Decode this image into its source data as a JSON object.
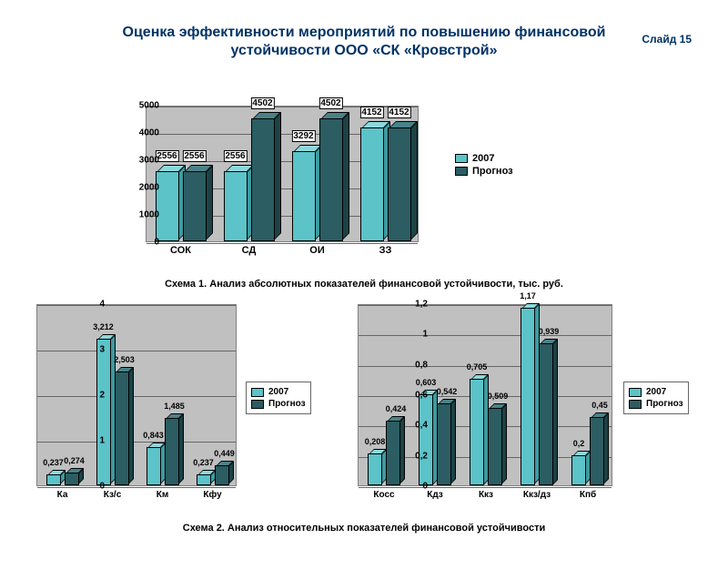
{
  "slide_number": "Слайд 15",
  "title_line1": "Оценка эффективности мероприятий по повышению финансовой",
  "title_line2": "устойчивости ООО «СК «Кровстрой»",
  "caption1": "Схема 1. Анализ абсолютных показателей финансовой устойчивости, тыс. руб.",
  "caption2": "Схема 2. Анализ относительных показателей финансовой устойчивости",
  "legend_2007": "2007",
  "legend_prognoz": "Прогноз",
  "colors": {
    "series_2007": "#5cc3c9",
    "series_prognoz": "#2b5d62",
    "plot_bg": "#c0c0c0",
    "grid": "#666666",
    "title_color": "#003366"
  },
  "chart1": {
    "type": "bar-3d",
    "ymax": 5000,
    "ytick_step": 1000,
    "yticks": [
      "0",
      "1000",
      "2000",
      "3000",
      "4000",
      "5000"
    ],
    "categories": [
      "СОК",
      "СД",
      "ОИ",
      "ЗЗ"
    ],
    "series_2007": [
      2556,
      2556,
      3292,
      4152
    ],
    "series_prognoz": [
      2556,
      4502,
      4502,
      4152
    ],
    "labels_2007": [
      "2556",
      "2556",
      "3292",
      "4152"
    ],
    "labels_prognoz": [
      "2556",
      "4502",
      "4502",
      "4152"
    ]
  },
  "chart2": {
    "type": "bar-3d",
    "ymax": 4,
    "ytick_step": 1,
    "yticks": [
      "0",
      "1",
      "2",
      "3",
      "4"
    ],
    "categories": [
      "Ка",
      "Кз/с",
      "Км",
      "Кфу"
    ],
    "series_2007": [
      0.237,
      3.212,
      0.843,
      0.237
    ],
    "series_prognoz": [
      0.274,
      2.503,
      1.485,
      0.449
    ],
    "labels_2007": [
      "0,237",
      "3,212",
      "0,843",
      "0,237"
    ],
    "labels_prognoz": [
      "0,274",
      "2,503",
      "1,485",
      "0,449"
    ]
  },
  "chart3": {
    "type": "bar-3d",
    "ymax": 1.2,
    "ytick_step": 0.2,
    "yticks": [
      "0",
      "0,2",
      "0,4",
      "0,6",
      "0,8",
      "1",
      "1,2"
    ],
    "categories": [
      "Косс",
      "Кдз",
      "Ккз",
      "Ккз/дз",
      "Кпб"
    ],
    "series_2007": [
      0.208,
      0.603,
      0.705,
      1.17,
      0.2
    ],
    "series_prognoz": [
      0.424,
      0.542,
      0.509,
      0.939,
      0.45
    ],
    "labels_2007": [
      "0,208",
      "0,603",
      "0,705",
      "1,17",
      "0,2"
    ],
    "labels_prognoz": [
      "0,424",
      "0,542",
      "0,509",
      "0,939",
      "0,45"
    ]
  }
}
